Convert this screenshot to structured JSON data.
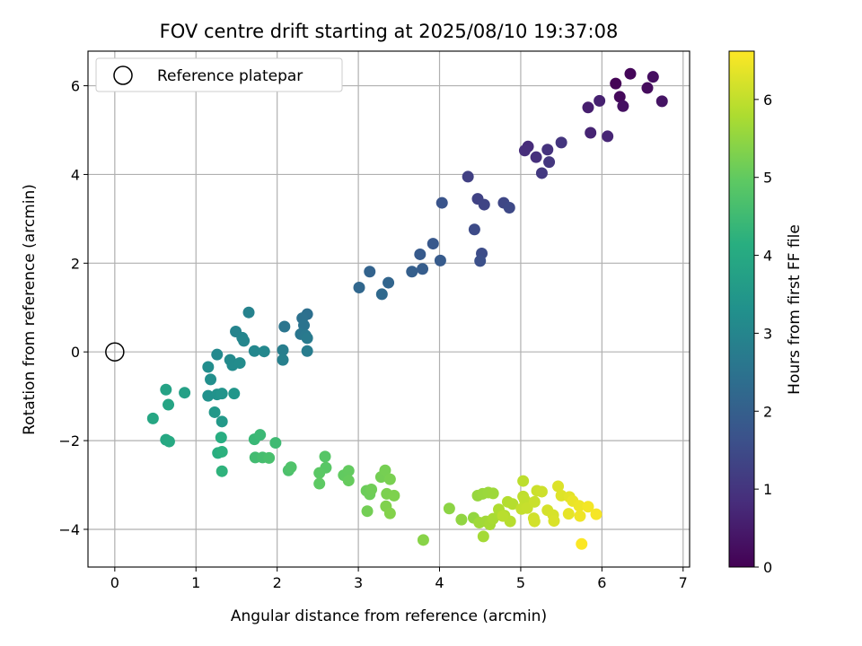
{
  "chart_data": {
    "type": "scatter",
    "title": "FOV centre drift starting at 2025/08/10 19:37:08",
    "xlabel": "Angular distance from reference (arcmin)",
    "ylabel": "Rotation from reference (arcmin)",
    "xlim": [
      -0.33,
      7.08
    ],
    "ylim": [
      -4.85,
      6.78
    ],
    "xticks": [
      0,
      1,
      2,
      3,
      4,
      5,
      6,
      7
    ],
    "yticks": [
      -4,
      -2,
      0,
      2,
      4,
      6
    ],
    "grid": true,
    "legend": {
      "position": "top-left",
      "entries": [
        "Reference platepar"
      ]
    },
    "reference_point": {
      "x": 0,
      "y": 0
    },
    "colorbar": {
      "label": "Hours from first FF file",
      "range": [
        0,
        6.62
      ],
      "ticks": [
        0,
        1,
        2,
        3,
        4,
        5,
        6
      ],
      "colormap": "viridis"
    },
    "points": [
      {
        "x": 6.17,
        "y": 6.05,
        "t": 0.05
      },
      {
        "x": 6.35,
        "y": 6.27,
        "t": 0.1
      },
      {
        "x": 6.22,
        "y": 5.75,
        "t": 0.15
      },
      {
        "x": 6.56,
        "y": 5.95,
        "t": 0.2
      },
      {
        "x": 6.63,
        "y": 6.2,
        "t": 0.25
      },
      {
        "x": 6.26,
        "y": 5.54,
        "t": 0.3
      },
      {
        "x": 6.74,
        "y": 5.65,
        "t": 0.35
      },
      {
        "x": 5.83,
        "y": 5.51,
        "t": 0.55
      },
      {
        "x": 5.97,
        "y": 5.66,
        "t": 0.6
      },
      {
        "x": 5.86,
        "y": 4.94,
        "t": 0.65
      },
      {
        "x": 6.07,
        "y": 4.86,
        "t": 0.7
      },
      {
        "x": 5.09,
        "y": 4.63,
        "t": 0.8
      },
      {
        "x": 5.05,
        "y": 4.54,
        "t": 0.85
      },
      {
        "x": 5.19,
        "y": 4.39,
        "t": 0.9
      },
      {
        "x": 5.33,
        "y": 4.56,
        "t": 0.95
      },
      {
        "x": 5.5,
        "y": 4.72,
        "t": 1.0
      },
      {
        "x": 5.35,
        "y": 4.28,
        "t": 1.05
      },
      {
        "x": 5.26,
        "y": 4.03,
        "t": 1.1
      },
      {
        "x": 4.35,
        "y": 3.95,
        "t": 1.25
      },
      {
        "x": 4.47,
        "y": 3.45,
        "t": 1.3
      },
      {
        "x": 4.55,
        "y": 3.32,
        "t": 1.35
      },
      {
        "x": 4.79,
        "y": 3.36,
        "t": 1.4
      },
      {
        "x": 4.86,
        "y": 3.25,
        "t": 1.45
      },
      {
        "x": 4.43,
        "y": 2.76,
        "t": 1.5
      },
      {
        "x": 4.52,
        "y": 2.22,
        "t": 1.55
      },
      {
        "x": 4.5,
        "y": 2.05,
        "t": 1.6
      },
      {
        "x": 4.03,
        "y": 3.36,
        "t": 1.7
      },
      {
        "x": 3.92,
        "y": 2.44,
        "t": 1.8
      },
      {
        "x": 3.76,
        "y": 2.2,
        "t": 1.85
      },
      {
        "x": 4.01,
        "y": 2.06,
        "t": 1.9
      },
      {
        "x": 3.79,
        "y": 1.87,
        "t": 1.95
      },
      {
        "x": 3.66,
        "y": 1.81,
        "t": 2.0
      },
      {
        "x": 3.14,
        "y": 1.81,
        "t": 2.1
      },
      {
        "x": 3.37,
        "y": 1.56,
        "t": 2.15
      },
      {
        "x": 3.01,
        "y": 1.45,
        "t": 2.2
      },
      {
        "x": 3.29,
        "y": 1.3,
        "t": 2.25
      },
      {
        "x": 2.37,
        "y": 0.85,
        "t": 2.4
      },
      {
        "x": 2.31,
        "y": 0.76,
        "t": 2.45
      },
      {
        "x": 2.33,
        "y": 0.6,
        "t": 2.5
      },
      {
        "x": 2.09,
        "y": 0.57,
        "t": 2.55
      },
      {
        "x": 2.29,
        "y": 0.4,
        "t": 2.6
      },
      {
        "x": 2.35,
        "y": 0.37,
        "t": 2.65
      },
      {
        "x": 2.37,
        "y": 0.31,
        "t": 2.7
      },
      {
        "x": 2.37,
        "y": 0.02,
        "t": 2.75
      },
      {
        "x": 2.07,
        "y": 0.04,
        "t": 2.8
      },
      {
        "x": 2.07,
        "y": -0.18,
        "t": 2.85
      },
      {
        "x": 1.65,
        "y": 0.89,
        "t": 2.9
      },
      {
        "x": 1.49,
        "y": 0.46,
        "t": 2.95
      },
      {
        "x": 1.57,
        "y": 0.32,
        "t": 3.0
      },
      {
        "x": 1.59,
        "y": 0.25,
        "t": 3.02
      },
      {
        "x": 1.72,
        "y": 0.02,
        "t": 3.05
      },
      {
        "x": 1.84,
        "y": 0.01,
        "t": 3.08
      },
      {
        "x": 1.26,
        "y": -0.06,
        "t": 3.1
      },
      {
        "x": 1.42,
        "y": -0.18,
        "t": 3.12
      },
      {
        "x": 1.45,
        "y": -0.3,
        "t": 3.15
      },
      {
        "x": 1.54,
        "y": -0.25,
        "t": 3.18
      },
      {
        "x": 1.15,
        "y": -0.34,
        "t": 3.2
      },
      {
        "x": 1.18,
        "y": -0.62,
        "t": 3.25
      },
      {
        "x": 1.15,
        "y": -0.99,
        "t": 3.3
      },
      {
        "x": 1.26,
        "y": -0.96,
        "t": 3.35
      },
      {
        "x": 1.32,
        "y": -0.94,
        "t": 3.4
      },
      {
        "x": 1.47,
        "y": -0.94,
        "t": 3.45
      },
      {
        "x": 1.23,
        "y": -1.36,
        "t": 3.5
      },
      {
        "x": 1.32,
        "y": -1.57,
        "t": 3.55
      },
      {
        "x": 0.86,
        "y": -0.92,
        "t": 3.75
      },
      {
        "x": 0.63,
        "y": -0.85,
        "t": 3.8
      },
      {
        "x": 0.66,
        "y": -1.19,
        "t": 3.85
      },
      {
        "x": 0.47,
        "y": -1.5,
        "t": 3.9
      },
      {
        "x": 0.63,
        "y": -1.98,
        "t": 3.95
      },
      {
        "x": 0.67,
        "y": -2.02,
        "t": 4.0
      },
      {
        "x": 1.31,
        "y": -1.93,
        "t": 4.1
      },
      {
        "x": 1.27,
        "y": -2.28,
        "t": 4.15
      },
      {
        "x": 1.32,
        "y": -2.25,
        "t": 4.2
      },
      {
        "x": 1.32,
        "y": -2.69,
        "t": 4.25
      },
      {
        "x": 1.72,
        "y": -1.97,
        "t": 4.4
      },
      {
        "x": 1.79,
        "y": -1.87,
        "t": 4.45
      },
      {
        "x": 1.98,
        "y": -2.05,
        "t": 4.5
      },
      {
        "x": 1.73,
        "y": -2.38,
        "t": 4.55
      },
      {
        "x": 1.82,
        "y": -2.38,
        "t": 4.6
      },
      {
        "x": 1.9,
        "y": -2.39,
        "t": 4.65
      },
      {
        "x": 2.14,
        "y": -2.67,
        "t": 4.7
      },
      {
        "x": 2.17,
        "y": -2.6,
        "t": 4.75
      },
      {
        "x": 2.59,
        "y": -2.36,
        "t": 4.85
      },
      {
        "x": 2.6,
        "y": -2.61,
        "t": 4.88
      },
      {
        "x": 2.52,
        "y": -2.73,
        "t": 4.9
      },
      {
        "x": 2.52,
        "y": -2.97,
        "t": 4.95
      },
      {
        "x": 2.82,
        "y": -2.78,
        "t": 5.0
      },
      {
        "x": 2.88,
        "y": -2.68,
        "t": 5.02
      },
      {
        "x": 2.88,
        "y": -2.9,
        "t": 5.05
      },
      {
        "x": 3.1,
        "y": -3.13,
        "t": 5.1
      },
      {
        "x": 3.14,
        "y": -3.21,
        "t": 5.12
      },
      {
        "x": 3.16,
        "y": -3.1,
        "t": 5.15
      },
      {
        "x": 3.11,
        "y": -3.59,
        "t": 5.18
      },
      {
        "x": 3.28,
        "y": -2.82,
        "t": 5.2
      },
      {
        "x": 3.33,
        "y": -2.67,
        "t": 5.22
      },
      {
        "x": 3.39,
        "y": -2.87,
        "t": 5.25
      },
      {
        "x": 3.35,
        "y": -3.2,
        "t": 5.28
      },
      {
        "x": 3.44,
        "y": -3.24,
        "t": 5.3
      },
      {
        "x": 3.34,
        "y": -3.48,
        "t": 5.32
      },
      {
        "x": 3.39,
        "y": -3.64,
        "t": 5.35
      },
      {
        "x": 3.8,
        "y": -4.24,
        "t": 5.4
      },
      {
        "x": 4.12,
        "y": -3.53,
        "t": 5.45
      },
      {
        "x": 4.27,
        "y": -3.78,
        "t": 5.5
      },
      {
        "x": 4.42,
        "y": -3.74,
        "t": 5.52
      },
      {
        "x": 4.47,
        "y": -3.24,
        "t": 5.55
      },
      {
        "x": 4.53,
        "y": -3.2,
        "t": 5.58
      },
      {
        "x": 4.6,
        "y": -3.17,
        "t": 5.6
      },
      {
        "x": 4.66,
        "y": -3.19,
        "t": 5.62
      },
      {
        "x": 4.49,
        "y": -3.85,
        "t": 5.65
      },
      {
        "x": 4.57,
        "y": -3.82,
        "t": 5.68
      },
      {
        "x": 4.54,
        "y": -4.16,
        "t": 5.7
      },
      {
        "x": 4.62,
        "y": -3.89,
        "t": 5.72
      },
      {
        "x": 4.66,
        "y": -3.76,
        "t": 5.75
      },
      {
        "x": 4.73,
        "y": -3.55,
        "t": 5.8
      },
      {
        "x": 4.8,
        "y": -3.69,
        "t": 5.82
      },
      {
        "x": 4.84,
        "y": -3.38,
        "t": 5.85
      },
      {
        "x": 4.9,
        "y": -3.43,
        "t": 5.88
      },
      {
        "x": 4.87,
        "y": -3.82,
        "t": 5.9
      },
      {
        "x": 4.78,
        "y": -3.7,
        "t": 5.92
      },
      {
        "x": 5.03,
        "y": -2.91,
        "t": 5.95
      },
      {
        "x": 5.03,
        "y": -3.26,
        "t": 5.98
      },
      {
        "x": 5.05,
        "y": -3.34,
        "t": 6.0
      },
      {
        "x": 5.01,
        "y": -3.54,
        "t": 6.02
      },
      {
        "x": 5.08,
        "y": -3.52,
        "t": 6.05
      },
      {
        "x": 5.17,
        "y": -3.38,
        "t": 6.08
      },
      {
        "x": 5.2,
        "y": -3.13,
        "t": 6.1
      },
      {
        "x": 5.26,
        "y": -3.15,
        "t": 6.12
      },
      {
        "x": 5.16,
        "y": -3.75,
        "t": 6.15
      },
      {
        "x": 5.17,
        "y": -3.82,
        "t": 6.18
      },
      {
        "x": 5.33,
        "y": -3.57,
        "t": 6.2
      },
      {
        "x": 5.4,
        "y": -3.68,
        "t": 6.22
      },
      {
        "x": 5.41,
        "y": -3.81,
        "t": 6.25
      },
      {
        "x": 5.46,
        "y": -3.03,
        "t": 6.28
      },
      {
        "x": 5.5,
        "y": -3.24,
        "t": 6.3
      },
      {
        "x": 5.6,
        "y": -3.27,
        "t": 6.35
      },
      {
        "x": 5.59,
        "y": -3.65,
        "t": 6.38
      },
      {
        "x": 5.64,
        "y": -3.36,
        "t": 6.42
      },
      {
        "x": 5.72,
        "y": -3.47,
        "t": 6.45
      },
      {
        "x": 5.73,
        "y": -3.7,
        "t": 6.48
      },
      {
        "x": 5.83,
        "y": -3.49,
        "t": 6.52
      },
      {
        "x": 5.93,
        "y": -3.66,
        "t": 6.55
      },
      {
        "x": 5.75,
        "y": -4.33,
        "t": 6.6
      }
    ]
  }
}
